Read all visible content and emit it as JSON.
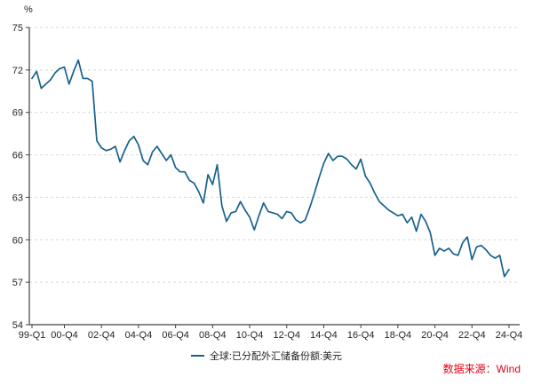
{
  "page": {
    "background": "#ffffff"
  },
  "chart_data": {
    "type": "line",
    "title": "",
    "unit_label": "%",
    "xlabel": "",
    "ylabel": "",
    "x_start": "1999-Q1",
    "x_end": "2024-Q4",
    "x_freq": "quarterly",
    "x_tick_labels": [
      "99-Q1",
      "00-Q4",
      "02-Q4",
      "04-Q4",
      "06-Q4",
      "08-Q4",
      "10-Q4",
      "12-Q4",
      "14-Q4",
      "16-Q4",
      "18-Q4",
      "20-Q4",
      "22-Q4",
      "24-Q4"
    ],
    "x_tick_indices": [
      0,
      7,
      15,
      23,
      31,
      39,
      47,
      55,
      63,
      71,
      79,
      87,
      95,
      103
    ],
    "ylim": [
      54,
      75
    ],
    "ytick_step": 3,
    "ytick_labels": [
      "54",
      "57",
      "60",
      "63",
      "66",
      "69",
      "72",
      "75"
    ],
    "grid": "horizontal-dashed",
    "legend_position": "bottom-center",
    "series": [
      {
        "name": "全球:已分配外汇储备份额:美元",
        "color": "#17618e",
        "values": [
          71.4,
          71.9,
          70.7,
          71.0,
          71.3,
          71.8,
          72.1,
          72.2,
          71.0,
          71.9,
          72.7,
          71.4,
          71.4,
          71.2,
          67.0,
          66.5,
          66.3,
          66.4,
          66.6,
          65.5,
          66.3,
          67.0,
          67.3,
          66.7,
          65.6,
          65.3,
          66.2,
          66.6,
          66.1,
          65.6,
          66.0,
          65.1,
          64.8,
          64.8,
          64.2,
          64.0,
          63.4,
          62.6,
          64.6,
          63.9,
          65.3,
          62.4,
          61.3,
          61.9,
          62.0,
          62.7,
          62.1,
          61.6,
          60.7,
          61.7,
          62.6,
          62.0,
          61.9,
          61.8,
          61.5,
          62.0,
          61.9,
          61.4,
          61.2,
          61.4,
          62.3,
          63.3,
          64.4,
          65.4,
          66.1,
          65.6,
          65.9,
          65.9,
          65.7,
          65.3,
          65.0,
          65.7,
          64.5,
          64.0,
          63.3,
          62.7,
          62.4,
          62.1,
          61.9,
          61.7,
          61.8,
          61.2,
          61.6,
          60.6,
          61.8,
          61.3,
          60.5,
          58.9,
          59.4,
          59.2,
          59.4,
          59.0,
          58.9,
          59.8,
          60.2,
          58.6,
          59.5,
          59.6,
          59.3,
          58.9,
          58.7,
          58.9,
          57.4,
          57.9
        ]
      }
    ]
  },
  "legend": {
    "label": "全球:已分配外汇储备份额:美元"
  },
  "source_note": {
    "text": "数据来源：Wind",
    "color": "#e60012"
  },
  "colors": {
    "axis": "#404040",
    "grid": "#d9d9d9",
    "tick_text": "#262626",
    "line": "#17618e",
    "background": "#ffffff"
  }
}
